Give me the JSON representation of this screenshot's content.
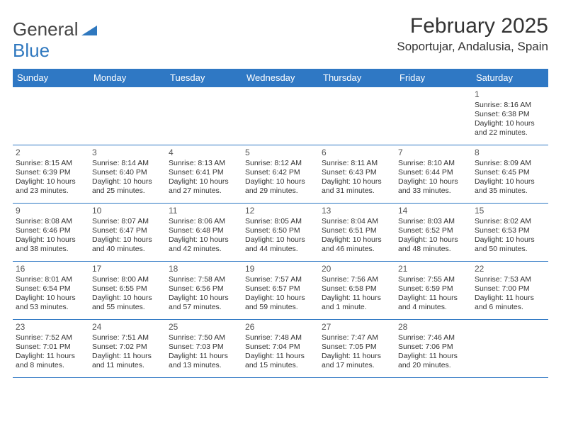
{
  "brand": {
    "part1": "General",
    "part2": "Blue"
  },
  "title": "February 2025",
  "location": "Soportujar, Andalusia, Spain",
  "colors": {
    "header_bg": "#2f78c4",
    "header_text": "#ffffff",
    "border": "#2f78c4",
    "brand_blue": "#2f78bf",
    "text": "#333333",
    "background": "#ffffff"
  },
  "layout": {
    "columns": 7,
    "rows": 5,
    "day_header_fontsize": 13,
    "title_fontsize": 30,
    "location_fontsize": 17,
    "cell_fontsize": 10.5,
    "daynum_fontsize": 12
  },
  "day_headers": [
    "Sunday",
    "Monday",
    "Tuesday",
    "Wednesday",
    "Thursday",
    "Friday",
    "Saturday"
  ],
  "weeks": [
    [
      null,
      null,
      null,
      null,
      null,
      null,
      {
        "n": "1",
        "sr": "Sunrise: 8:16 AM",
        "ss": "Sunset: 6:38 PM",
        "dl": "Daylight: 10 hours and 22 minutes."
      }
    ],
    [
      {
        "n": "2",
        "sr": "Sunrise: 8:15 AM",
        "ss": "Sunset: 6:39 PM",
        "dl": "Daylight: 10 hours and 23 minutes."
      },
      {
        "n": "3",
        "sr": "Sunrise: 8:14 AM",
        "ss": "Sunset: 6:40 PM",
        "dl": "Daylight: 10 hours and 25 minutes."
      },
      {
        "n": "4",
        "sr": "Sunrise: 8:13 AM",
        "ss": "Sunset: 6:41 PM",
        "dl": "Daylight: 10 hours and 27 minutes."
      },
      {
        "n": "5",
        "sr": "Sunrise: 8:12 AM",
        "ss": "Sunset: 6:42 PM",
        "dl": "Daylight: 10 hours and 29 minutes."
      },
      {
        "n": "6",
        "sr": "Sunrise: 8:11 AM",
        "ss": "Sunset: 6:43 PM",
        "dl": "Daylight: 10 hours and 31 minutes."
      },
      {
        "n": "7",
        "sr": "Sunrise: 8:10 AM",
        "ss": "Sunset: 6:44 PM",
        "dl": "Daylight: 10 hours and 33 minutes."
      },
      {
        "n": "8",
        "sr": "Sunrise: 8:09 AM",
        "ss": "Sunset: 6:45 PM",
        "dl": "Daylight: 10 hours and 35 minutes."
      }
    ],
    [
      {
        "n": "9",
        "sr": "Sunrise: 8:08 AM",
        "ss": "Sunset: 6:46 PM",
        "dl": "Daylight: 10 hours and 38 minutes."
      },
      {
        "n": "10",
        "sr": "Sunrise: 8:07 AM",
        "ss": "Sunset: 6:47 PM",
        "dl": "Daylight: 10 hours and 40 minutes."
      },
      {
        "n": "11",
        "sr": "Sunrise: 8:06 AM",
        "ss": "Sunset: 6:48 PM",
        "dl": "Daylight: 10 hours and 42 minutes."
      },
      {
        "n": "12",
        "sr": "Sunrise: 8:05 AM",
        "ss": "Sunset: 6:50 PM",
        "dl": "Daylight: 10 hours and 44 minutes."
      },
      {
        "n": "13",
        "sr": "Sunrise: 8:04 AM",
        "ss": "Sunset: 6:51 PM",
        "dl": "Daylight: 10 hours and 46 minutes."
      },
      {
        "n": "14",
        "sr": "Sunrise: 8:03 AM",
        "ss": "Sunset: 6:52 PM",
        "dl": "Daylight: 10 hours and 48 minutes."
      },
      {
        "n": "15",
        "sr": "Sunrise: 8:02 AM",
        "ss": "Sunset: 6:53 PM",
        "dl": "Daylight: 10 hours and 50 minutes."
      }
    ],
    [
      {
        "n": "16",
        "sr": "Sunrise: 8:01 AM",
        "ss": "Sunset: 6:54 PM",
        "dl": "Daylight: 10 hours and 53 minutes."
      },
      {
        "n": "17",
        "sr": "Sunrise: 8:00 AM",
        "ss": "Sunset: 6:55 PM",
        "dl": "Daylight: 10 hours and 55 minutes."
      },
      {
        "n": "18",
        "sr": "Sunrise: 7:58 AM",
        "ss": "Sunset: 6:56 PM",
        "dl": "Daylight: 10 hours and 57 minutes."
      },
      {
        "n": "19",
        "sr": "Sunrise: 7:57 AM",
        "ss": "Sunset: 6:57 PM",
        "dl": "Daylight: 10 hours and 59 minutes."
      },
      {
        "n": "20",
        "sr": "Sunrise: 7:56 AM",
        "ss": "Sunset: 6:58 PM",
        "dl": "Daylight: 11 hours and 1 minute."
      },
      {
        "n": "21",
        "sr": "Sunrise: 7:55 AM",
        "ss": "Sunset: 6:59 PM",
        "dl": "Daylight: 11 hours and 4 minutes."
      },
      {
        "n": "22",
        "sr": "Sunrise: 7:53 AM",
        "ss": "Sunset: 7:00 PM",
        "dl": "Daylight: 11 hours and 6 minutes."
      }
    ],
    [
      {
        "n": "23",
        "sr": "Sunrise: 7:52 AM",
        "ss": "Sunset: 7:01 PM",
        "dl": "Daylight: 11 hours and 8 minutes."
      },
      {
        "n": "24",
        "sr": "Sunrise: 7:51 AM",
        "ss": "Sunset: 7:02 PM",
        "dl": "Daylight: 11 hours and 11 minutes."
      },
      {
        "n": "25",
        "sr": "Sunrise: 7:50 AM",
        "ss": "Sunset: 7:03 PM",
        "dl": "Daylight: 11 hours and 13 minutes."
      },
      {
        "n": "26",
        "sr": "Sunrise: 7:48 AM",
        "ss": "Sunset: 7:04 PM",
        "dl": "Daylight: 11 hours and 15 minutes."
      },
      {
        "n": "27",
        "sr": "Sunrise: 7:47 AM",
        "ss": "Sunset: 7:05 PM",
        "dl": "Daylight: 11 hours and 17 minutes."
      },
      {
        "n": "28",
        "sr": "Sunrise: 7:46 AM",
        "ss": "Sunset: 7:06 PM",
        "dl": "Daylight: 11 hours and 20 minutes."
      },
      null
    ]
  ]
}
